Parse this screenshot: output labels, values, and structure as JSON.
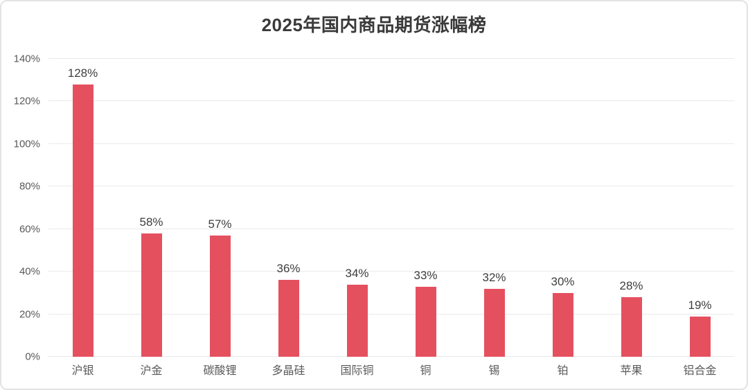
{
  "page": {
    "background": "#ffffff",
    "border_color": "#e3e3e3"
  },
  "chart_data": {
    "type": "bar",
    "title": "2025年国内商品期货涨幅榜",
    "categories": [
      "沪银",
      "沪金",
      "碳酸锂",
      "多晶硅",
      "国际铜",
      "铜",
      "锡",
      "铂",
      "苹果",
      "铝合金"
    ],
    "values": [
      128,
      58,
      57,
      36,
      34,
      33,
      32,
      30,
      28,
      19
    ],
    "value_labels": [
      "128%",
      "58%",
      "57%",
      "36%",
      "34%",
      "33%",
      "32%",
      "30%",
      "28%",
      "19%"
    ],
    "yticks": [
      "0%",
      "20%",
      "40%",
      "60%",
      "80%",
      "100%",
      "120%",
      "140%"
    ],
    "ytick_values": [
      0,
      20,
      40,
      60,
      80,
      100,
      120,
      140
    ],
    "ylim": [
      0,
      140
    ],
    "xlabel": "",
    "ylabel": "",
    "grid": true,
    "legend": false,
    "colors": {
      "bar": "#e5505f",
      "gridline": "#e9e9e9",
      "axis_text": "#595959",
      "value_label_text": "#3d3d3d",
      "title_text": "#3a3a3a"
    }
  }
}
